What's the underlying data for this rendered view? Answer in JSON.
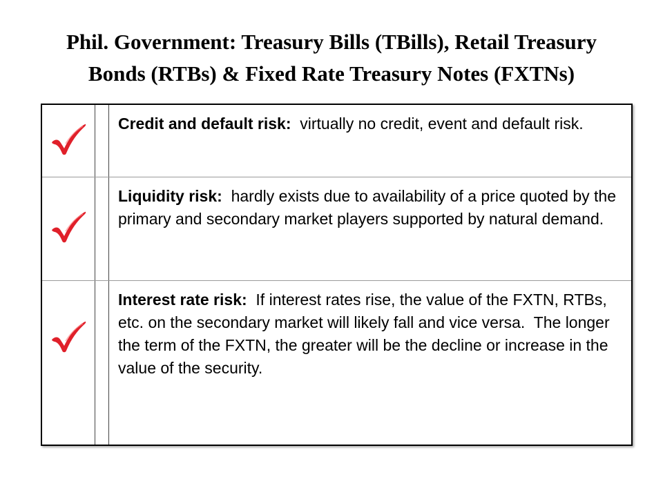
{
  "title": {
    "line1": "Phil. Government: Treasury Bills (TBills), Retail Treasury",
    "line2": "Bonds (RTBs) & Fixed Rate Treasury Notes (FXTNs)"
  },
  "colors": {
    "checkmark": "#e0202a",
    "text": "#000000",
    "border": "#000000"
  },
  "rows": [
    {
      "icon": "checkmark-icon",
      "label": "Credit and default risk:",
      "text": "  virtually no credit, event and default risk."
    },
    {
      "icon": "checkmark-icon",
      "label": "Liquidity risk:",
      "text": "  hardly exists due to availability of a price quoted by the primary and secondary market players supported by natural demand."
    },
    {
      "icon": "checkmark-icon",
      "label": "Interest rate risk:",
      "text": "  If interest rates rise, the value of the FXTN, RTBs, etc. on the secondary market will likely fall and vice versa.  The longer the term of the FXTN, the greater will be the decline or increase in the value of the security."
    }
  ]
}
